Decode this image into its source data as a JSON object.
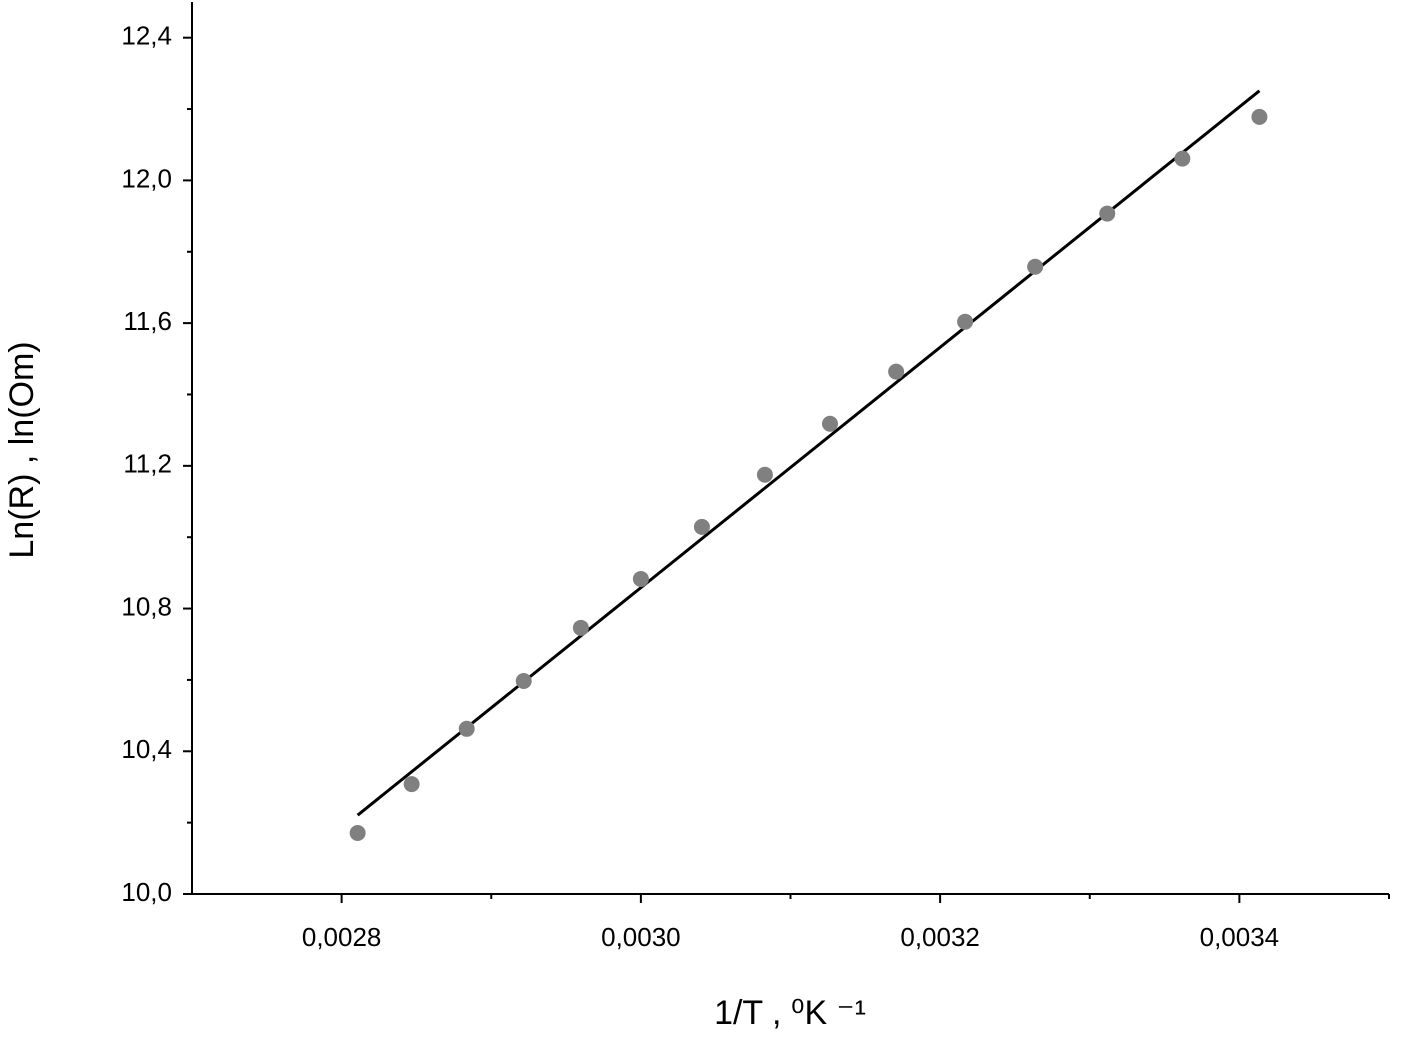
{
  "chart_data": {
    "type": "scatter",
    "xlabel": "1/T , ⁰K ⁻¹",
    "ylabel": "Ln(R) , ln(Om)",
    "xlim": [
      0.0027,
      0.0035
    ],
    "ylim": [
      10.0,
      12.5
    ],
    "xticks": [
      {
        "value": 0.0028,
        "label": "0,0028"
      },
      {
        "value": 0.003,
        "label": "0,0030"
      },
      {
        "value": 0.0032,
        "label": "0,0032"
      },
      {
        "value": 0.0034,
        "label": "0,0034"
      }
    ],
    "xminorticks": [
      0.0029,
      0.0031,
      0.0033,
      0.0035
    ],
    "yticks": [
      {
        "value": 10.0,
        "label": "10,0"
      },
      {
        "value": 10.4,
        "label": "10,4"
      },
      {
        "value": 10.8,
        "label": "10,8"
      },
      {
        "value": 11.2,
        "label": "11,2"
      },
      {
        "value": 11.6,
        "label": "11,6"
      },
      {
        "value": 12.0,
        "label": "12,0"
      },
      {
        "value": 12.4,
        "label": "12,4"
      }
    ],
    "yminorticks": [
      10.2,
      10.6,
      11.0,
      11.4,
      11.8,
      12.2
    ],
    "points": {
      "color": "#808080",
      "x": [
        0.0028107,
        0.0028468,
        0.0028836,
        0.0029217,
        0.0029599,
        0.003,
        0.0030408,
        0.0030829,
        0.0031264,
        0.0031706,
        0.0032167,
        0.0032635,
        0.0033117,
        0.0033619,
        0.0034134
      ],
      "y": [
        10.171,
        10.308,
        10.463,
        10.597,
        10.746,
        10.883,
        11.029,
        11.175,
        11.318,
        11.464,
        11.604,
        11.758,
        11.907,
        12.061,
        12.178
      ]
    },
    "fit": {
      "color": "#000000",
      "x": [
        0.0028107,
        0.0034134
      ],
      "y": [
        10.221,
        12.251
      ]
    }
  }
}
